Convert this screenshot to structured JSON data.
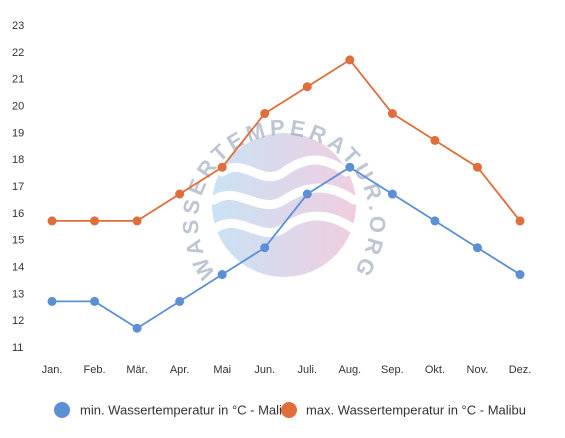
{
  "chart_data": {
    "type": "line",
    "categories": [
      "Jan.",
      "Feb.",
      "Mär.",
      "Apr.",
      "Mai",
      "Jun.",
      "Juli.",
      "Aug.",
      "Sep.",
      "Okt.",
      "Nov.",
      "Dez."
    ],
    "yticks": [
      11,
      12,
      13,
      14,
      15,
      16,
      17,
      18,
      19,
      20,
      21,
      22,
      23
    ],
    "ylim": [
      11,
      23
    ],
    "series": [
      {
        "name": "min. Wassertemperatur in °C - Malibu",
        "color": "#5b8fd6",
        "values": [
          12.7,
          12.7,
          11.7,
          12.7,
          13.7,
          14.7,
          16.7,
          17.7,
          16.7,
          15.7,
          14.7,
          13.7
        ]
      },
      {
        "name": "max. Wassertemperatur in °C - Malibu",
        "color": "#e06d3c",
        "values": [
          15.7,
          15.7,
          15.7,
          16.7,
          17.7,
          19.7,
          20.7,
          21.7,
          19.7,
          18.7,
          17.7,
          15.7
        ]
      }
    ],
    "grid": false,
    "legend_position": "bottom"
  },
  "watermark": {
    "text": "WASSERTEMPERATUR.ORG"
  }
}
